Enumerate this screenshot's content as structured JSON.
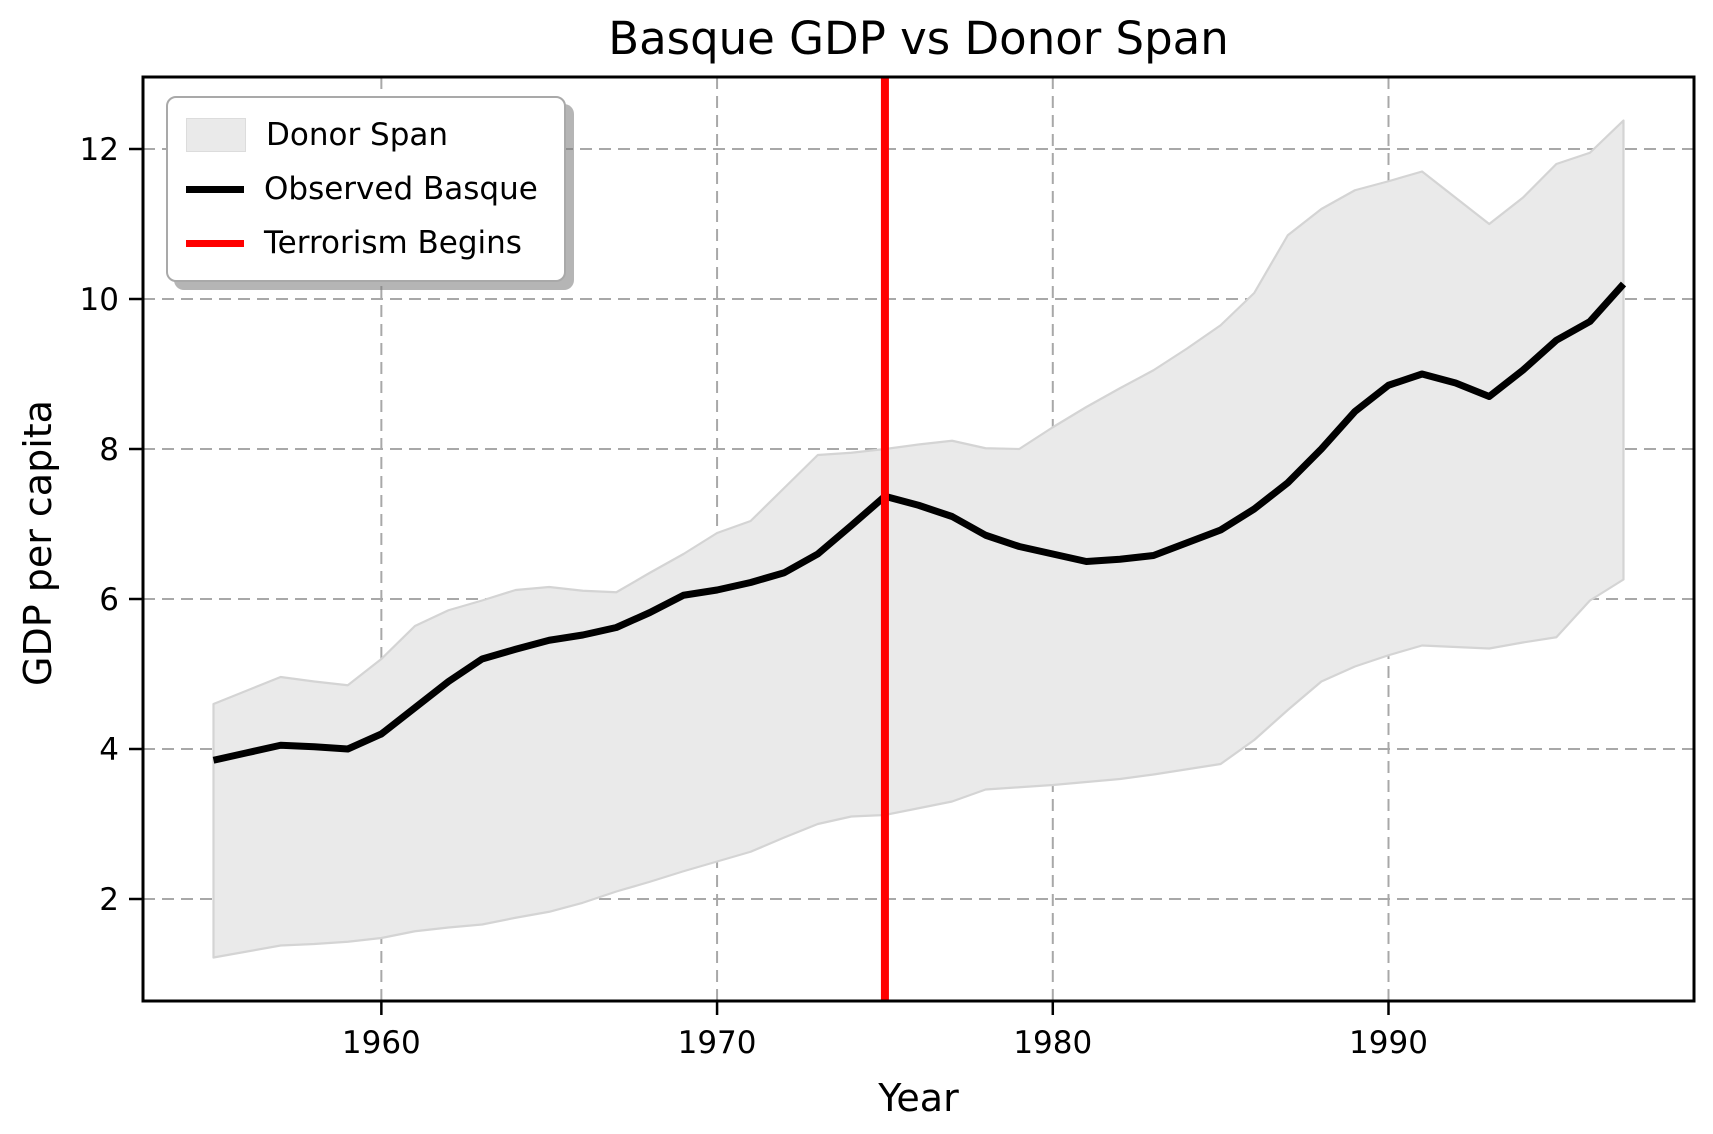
{
  "chart_data": {
    "type": "line",
    "title": "Basque GDP vs Donor Span",
    "xlabel": "Year",
    "ylabel": "GDP per capita",
    "x_ticks": [
      1960,
      1970,
      1980,
      1990
    ],
    "y_ticks": [
      2,
      4,
      6,
      8,
      10,
      12
    ],
    "xlim": [
      1952.9,
      1999.1
    ],
    "ylim": [
      0.64,
      12.96
    ],
    "grid": true,
    "legend_position": "upper left",
    "terrorism_begins_year": 1975,
    "years": [
      1955,
      1956,
      1957,
      1958,
      1959,
      1960,
      1961,
      1962,
      1963,
      1964,
      1965,
      1966,
      1967,
      1968,
      1969,
      1970,
      1971,
      1972,
      1973,
      1974,
      1975,
      1976,
      1977,
      1978,
      1979,
      1980,
      1981,
      1982,
      1983,
      1984,
      1985,
      1986,
      1987,
      1988,
      1989,
      1990,
      1991,
      1992,
      1993,
      1994,
      1995,
      1996,
      1997
    ],
    "series": [
      {
        "name": "Observed Basque",
        "values": [
          3.85,
          3.95,
          4.05,
          4.03,
          4.0,
          4.2,
          4.55,
          4.9,
          5.2,
          5.33,
          5.45,
          5.52,
          5.62,
          5.82,
          6.05,
          6.12,
          6.22,
          6.35,
          6.6,
          6.98,
          7.37,
          7.25,
          7.1,
          6.85,
          6.7,
          6.6,
          6.5,
          6.53,
          6.58,
          6.75,
          6.92,
          7.2,
          7.55,
          8.0,
          8.5,
          8.85,
          9.0,
          8.88,
          8.7,
          9.05,
          9.45,
          9.7,
          10.2
        ]
      },
      {
        "name": "Donor Span upper",
        "values": [
          4.6,
          4.78,
          4.96,
          4.9,
          4.85,
          5.2,
          5.64,
          5.85,
          5.98,
          6.12,
          6.16,
          6.11,
          6.09,
          6.35,
          6.6,
          6.88,
          7.04,
          7.48,
          7.92,
          7.95,
          8.0,
          8.06,
          8.11,
          8.01,
          8.0,
          8.29,
          8.56,
          8.81,
          9.05,
          9.34,
          9.65,
          10.08,
          10.85,
          11.2,
          11.45,
          11.57,
          11.7,
          11.35,
          11.0,
          11.35,
          11.8,
          11.95,
          12.38
        ]
      },
      {
        "name": "Donor Span lower",
        "values": [
          1.22,
          1.3,
          1.38,
          1.4,
          1.43,
          1.48,
          1.57,
          1.62,
          1.66,
          1.75,
          1.83,
          1.95,
          2.1,
          2.23,
          2.37,
          2.5,
          2.63,
          2.82,
          3.0,
          3.1,
          3.12,
          3.21,
          3.3,
          3.46,
          3.49,
          3.52,
          3.56,
          3.6,
          3.66,
          3.73,
          3.8,
          4.12,
          4.52,
          4.9,
          5.1,
          5.25,
          5.38,
          5.36,
          5.34,
          5.42,
          5.49,
          5.98,
          6.26
        ]
      }
    ],
    "legend": [
      {
        "label": "Donor Span"
      },
      {
        "label": "Observed Basque"
      },
      {
        "label": "Terrorism Begins"
      }
    ],
    "colors": {
      "band_fill": "#eaeaea",
      "band_edge": "#d4d4d4",
      "observed_line": "#000000",
      "terrorism_line": "#ff0000",
      "grid": "#a8a8a8",
      "axis": "#000000"
    }
  }
}
